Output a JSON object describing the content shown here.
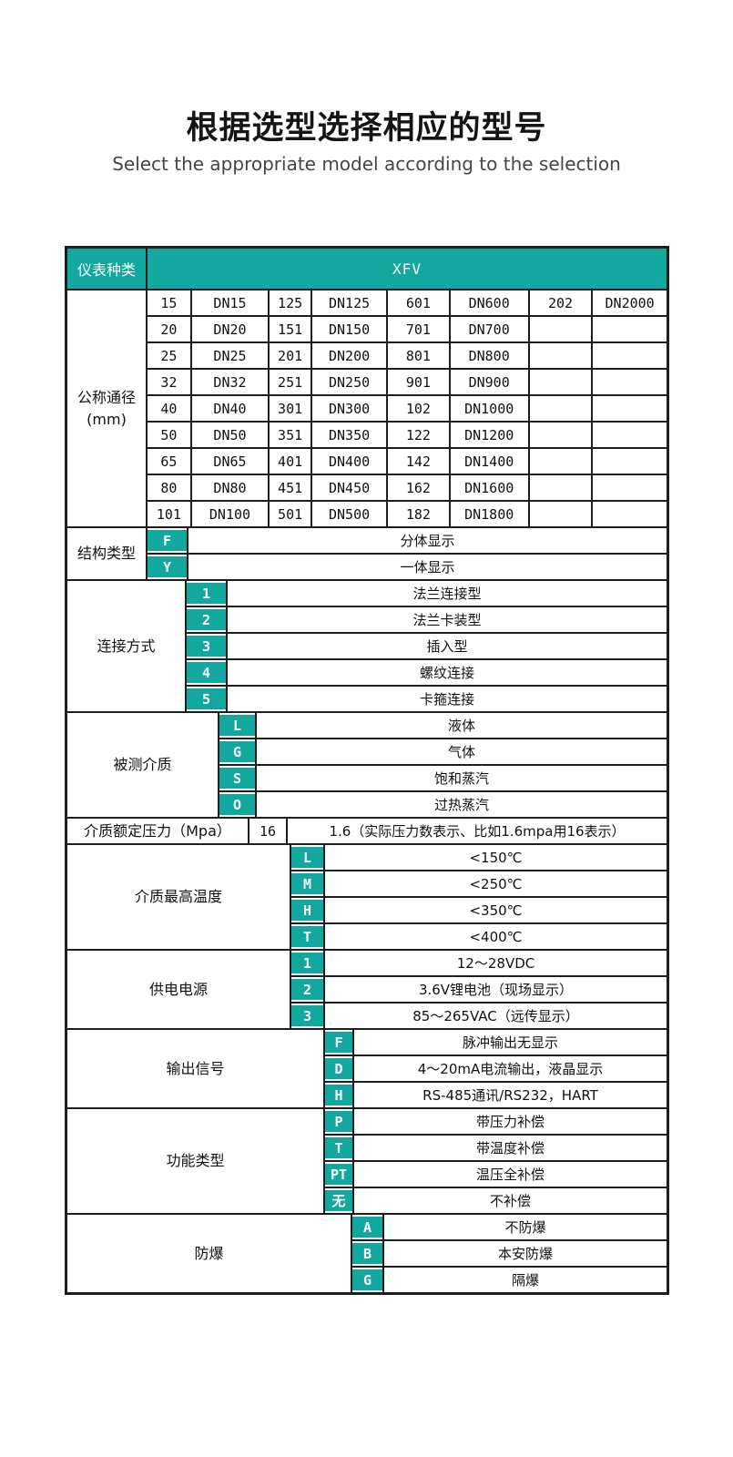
{
  "page": {
    "title": "根据选型选择相应的型号",
    "subtitle": "Select the appropriate model according to the selection"
  },
  "colors": {
    "accent": "#12a8a0",
    "border": "#1e1e1e"
  },
  "table": {
    "header": {
      "label": "仪表种类",
      "value": "XFV"
    },
    "diameter": {
      "label": "公称通径",
      "label_sub": "(mm)",
      "rows": [
        [
          "15",
          "DN15",
          "125",
          "DN125",
          "601",
          "DN600",
          "202",
          "DN2000"
        ],
        [
          "20",
          "DN20",
          "151",
          "DN150",
          "701",
          "DN700",
          "",
          ""
        ],
        [
          "25",
          "DN25",
          "201",
          "DN200",
          "801",
          "DN800",
          "",
          ""
        ],
        [
          "32",
          "DN32",
          "251",
          "DN250",
          "901",
          "DN900",
          "",
          ""
        ],
        [
          "40",
          "DN40",
          "301",
          "DN300",
          "102",
          "DN1000",
          "",
          ""
        ],
        [
          "50",
          "DN50",
          "351",
          "DN350",
          "122",
          "DN1200",
          "",
          ""
        ],
        [
          "65",
          "DN65",
          "401",
          "DN400",
          "142",
          "DN1400",
          "",
          ""
        ],
        [
          "80",
          "DN80",
          "451",
          "DN450",
          "162",
          "DN1600",
          "",
          ""
        ],
        [
          "101",
          "DN100",
          "501",
          "DN500",
          "182",
          "DN1800",
          "",
          ""
        ]
      ]
    },
    "sections": [
      {
        "id": "structure-type",
        "label": "结构类型",
        "options": [
          {
            "code": "F",
            "desc": "分体显示"
          },
          {
            "code": "Y",
            "desc": "一体显示"
          }
        ]
      },
      {
        "id": "connection-type",
        "label": "连接方式",
        "options": [
          {
            "code": "1",
            "desc": "法兰连接型"
          },
          {
            "code": "2",
            "desc": "法兰卡装型"
          },
          {
            "code": "3",
            "desc": "插入型"
          },
          {
            "code": "4",
            "desc": "螺纹连接"
          },
          {
            "code": "5",
            "desc": "卡箍连接"
          }
        ]
      },
      {
        "id": "measured-medium",
        "label": "被测介质",
        "options": [
          {
            "code": "L",
            "desc": "液体"
          },
          {
            "code": "G",
            "desc": "气体"
          },
          {
            "code": "S",
            "desc": "饱和蒸汽"
          },
          {
            "code": "O",
            "desc": "过热蒸汽"
          }
        ]
      },
      {
        "id": "rated-pressure",
        "label": "介质额定压力（Mpa）",
        "options": [
          {
            "code": "16",
            "desc": "1.6（实际压力数表示、比如1.6mpa用16表示）"
          }
        ]
      },
      {
        "id": "max-temperature",
        "label": "介质最高温度",
        "options": [
          {
            "code": "L",
            "desc": "<150℃"
          },
          {
            "code": "M",
            "desc": "<250℃"
          },
          {
            "code": "H",
            "desc": "<350℃"
          },
          {
            "code": "T",
            "desc": "<400℃"
          }
        ]
      },
      {
        "id": "power-supply",
        "label": "供电电源",
        "options": [
          {
            "code": "1",
            "desc": "12～28VDC"
          },
          {
            "code": "2",
            "desc": "3.6V锂电池（现场显示）"
          },
          {
            "code": "3",
            "desc": "85～265VAC（远传显示）"
          }
        ]
      },
      {
        "id": "output-signal",
        "label": "输出信号",
        "options": [
          {
            "code": "F",
            "desc": "脉冲输出无显示"
          },
          {
            "code": "D",
            "desc": "4～20mA电流输出，液晶显示"
          },
          {
            "code": "H",
            "desc": "RS-485通讯/RS232，HART"
          }
        ]
      },
      {
        "id": "function-type",
        "label": "功能类型",
        "options": [
          {
            "code": "P",
            "desc": "带压力补偿"
          },
          {
            "code": "T",
            "desc": "带温度补偿"
          },
          {
            "code": "PT",
            "desc": "温压全补偿"
          },
          {
            "code": "无",
            "desc": "不补偿"
          }
        ]
      },
      {
        "id": "explosion-proof",
        "label": "防爆",
        "options": [
          {
            "code": "A",
            "desc": "不防爆"
          },
          {
            "code": "B",
            "desc": "本安防爆"
          },
          {
            "code": "G",
            "desc": "隔爆"
          }
        ]
      }
    ]
  }
}
